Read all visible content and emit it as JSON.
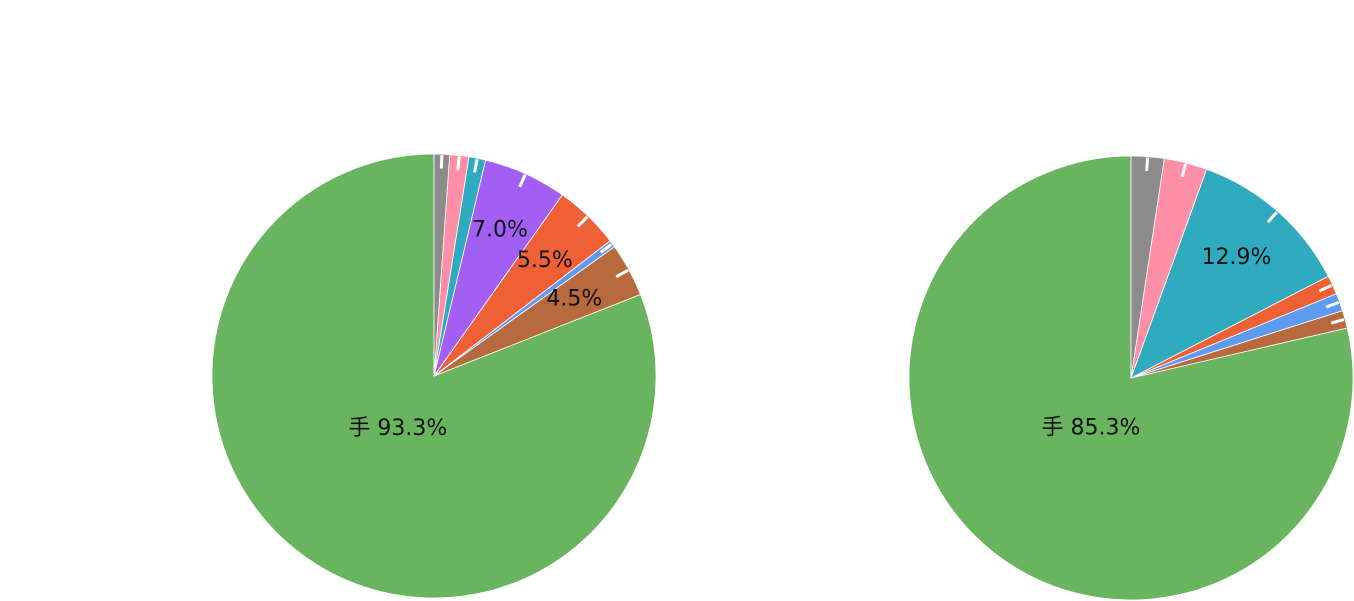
{
  "chart_data": [
    {
      "type": "pie",
      "slices": [
        {
          "value": 93.3,
          "color": "#69b45e",
          "label": "手 93.3%"
        },
        {
          "value": 4.5,
          "color": "#b86a3f",
          "label": "4.5%"
        },
        {
          "value": 0.6,
          "color": "#5d9bf0",
          "label": ""
        },
        {
          "value": 5.5,
          "color": "#f06036",
          "label": "5.5%"
        },
        {
          "value": 7.0,
          "color": "#a35ff3",
          "label": "7.0%"
        },
        {
          "value": 1.4,
          "color": "#30aabe",
          "label": ""
        },
        {
          "value": 1.6,
          "color": "#ff8fa6",
          "label": ""
        },
        {
          "value": 1.3,
          "color": "#8c8c8c",
          "label": ""
        }
      ]
    },
    {
      "type": "pie",
      "slices": [
        {
          "value": 85.3,
          "color": "#69b45e",
          "label": "手 85.3%"
        },
        {
          "value": 1.4,
          "color": "#b86a3f",
          "label": ""
        },
        {
          "value": 1.4,
          "color": "#5d9bf0",
          "label": ""
        },
        {
          "value": 1.5,
          "color": "#f06036",
          "label": ""
        },
        {
          "value": 12.9,
          "color": "#30aabe",
          "label": "12.9%"
        },
        {
          "value": 3.4,
          "color": "#ff8fa6",
          "label": ""
        },
        {
          "value": 2.6,
          "color": "#8c8c8c",
          "label": ""
        }
      ]
    }
  ]
}
